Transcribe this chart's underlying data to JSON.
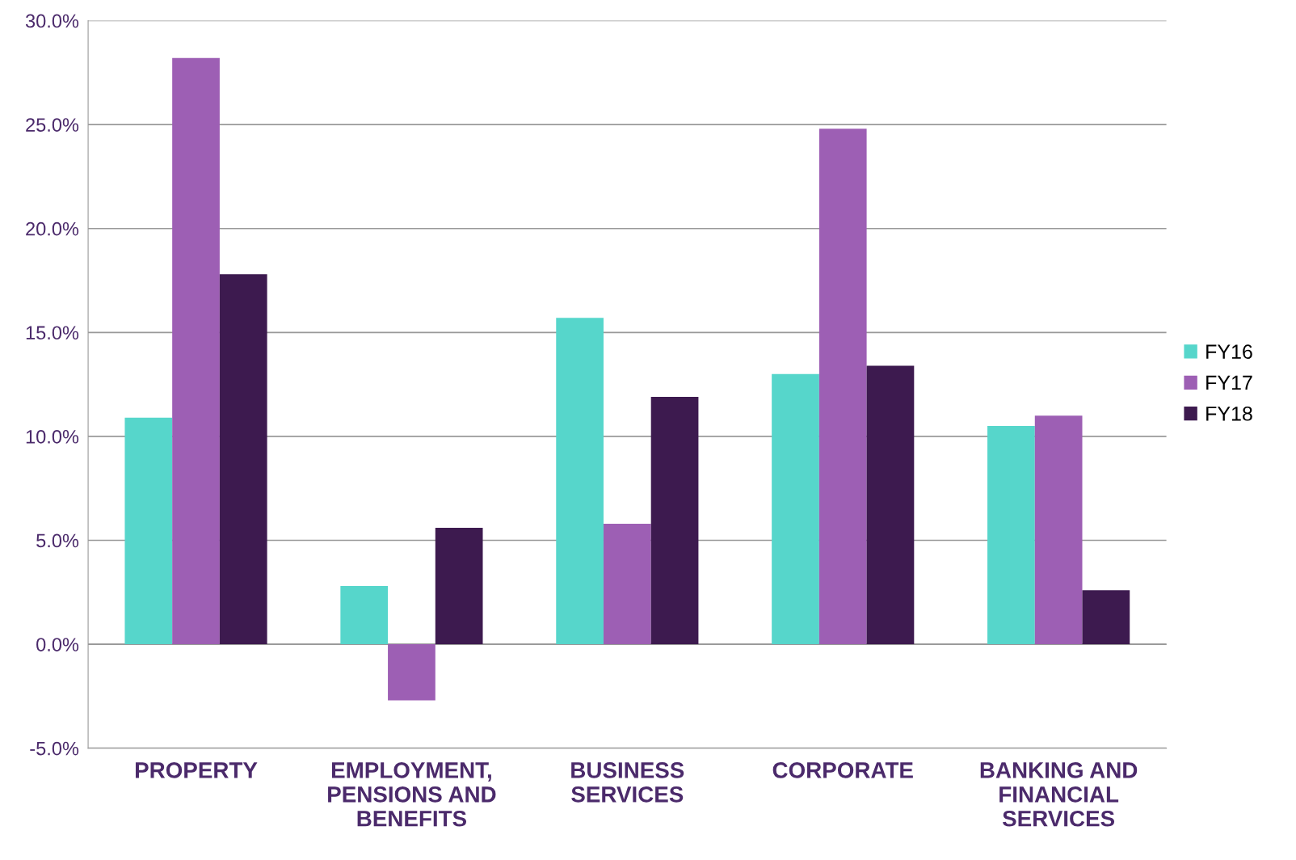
{
  "chart_data": {
    "type": "bar",
    "categories": [
      "PROPERTY",
      "EMPLOYMENT,\nPENSIONS AND\nBENEFITS",
      "BUSINESS\nSERVICES",
      "CORPORATE",
      "BANKING AND\nFINANCIAL\nSERVICES"
    ],
    "series": [
      {
        "name": "FY16",
        "color": "#56d6cb",
        "values": [
          10.9,
          2.8,
          15.7,
          13.0,
          10.5
        ]
      },
      {
        "name": "FY17",
        "color": "#9d5fb4",
        "values": [
          28.2,
          -2.7,
          5.8,
          24.8,
          11.0
        ]
      },
      {
        "name": "FY18",
        "color": "#3d1a4f",
        "values": [
          17.8,
          5.6,
          11.9,
          13.4,
          2.6
        ]
      }
    ],
    "ylim": [
      -5,
      30
    ],
    "yticks": [
      {
        "value": -5,
        "label": "-5.0%"
      },
      {
        "value": 0,
        "label": "0.0%"
      },
      {
        "value": 5,
        "label": "5.0%"
      },
      {
        "value": 10,
        "label": "10.0%"
      },
      {
        "value": 15,
        "label": "15.0%"
      },
      {
        "value": 20,
        "label": "20.0%"
      },
      {
        "value": 25,
        "label": "25.0%"
      },
      {
        "value": 30,
        "label": "30.0%"
      }
    ],
    "grid": "y",
    "legend": "right"
  }
}
